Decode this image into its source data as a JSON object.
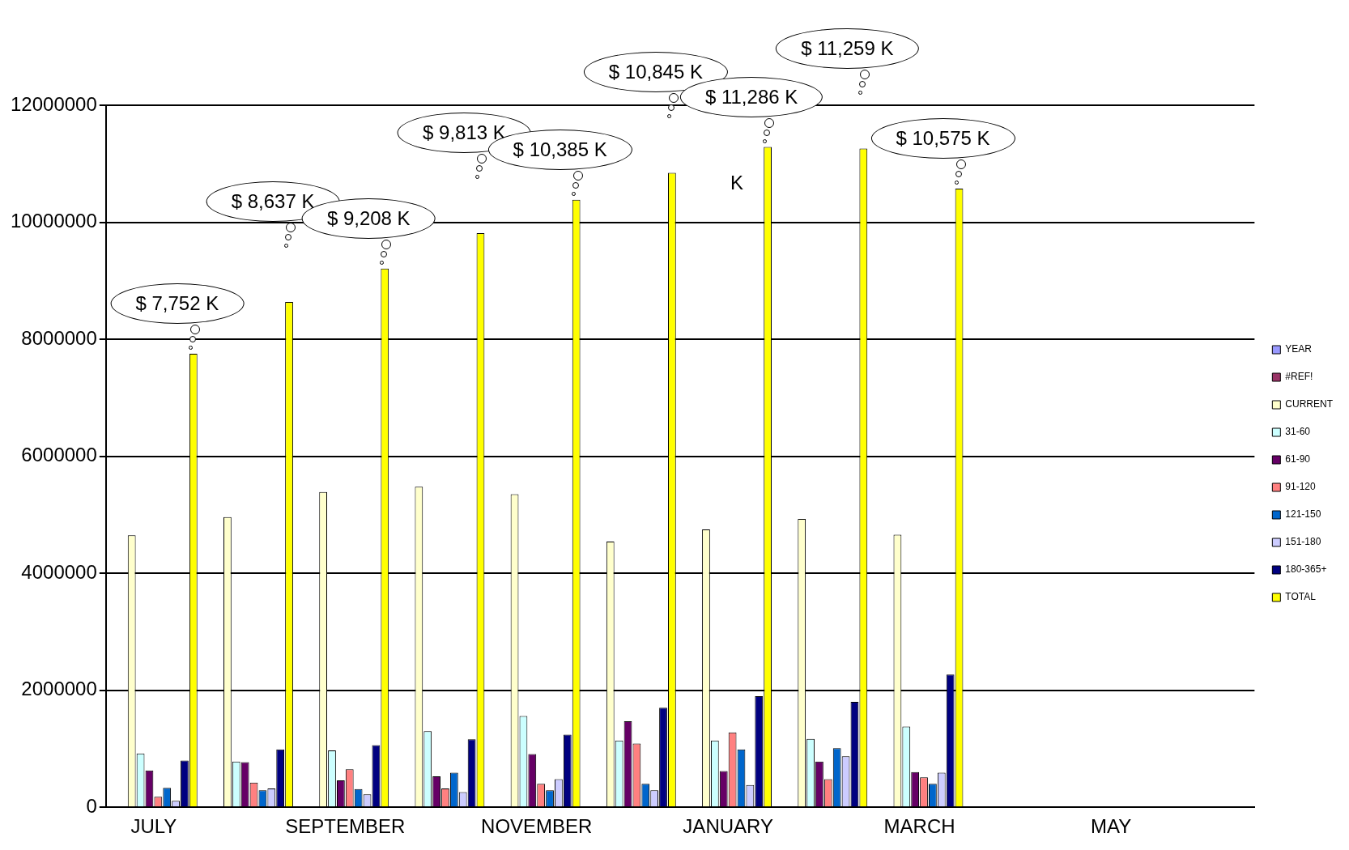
{
  "chart_data": {
    "type": "bar",
    "categories": [
      "JULY",
      null,
      "SEPTEMBER",
      null,
      "NOVEMBER",
      null,
      "JANUARY",
      null,
      "MARCH",
      null,
      "MAY",
      null
    ],
    "series": [
      {
        "name": "YEAR",
        "color": "#9999ff",
        "values": [
          0,
          0,
          0,
          0,
          0,
          0,
          0,
          0,
          0,
          0,
          0,
          0
        ]
      },
      {
        "name": "#REF!",
        "color": "#993366",
        "values": [
          0,
          0,
          0,
          0,
          0,
          0,
          0,
          0,
          0,
          0,
          0,
          0
        ]
      },
      {
        "name": "CURRENT",
        "color": "#ffffcc",
        "values": [
          4650000,
          4960000,
          5390000,
          5480000,
          5350000,
          4540000,
          4750000,
          4930000,
          4660000,
          0,
          0,
          0
        ]
      },
      {
        "name": "31-60",
        "color": "#ccffff",
        "values": [
          920000,
          780000,
          970000,
          1300000,
          1560000,
          1140000,
          1140000,
          1170000,
          1380000,
          0,
          0,
          0
        ]
      },
      {
        "name": "61-90",
        "color": "#660066",
        "values": [
          630000,
          770000,
          460000,
          530000,
          910000,
          1470000,
          620000,
          780000,
          600000,
          0,
          0,
          0
        ]
      },
      {
        "name": "91-120",
        "color": "#ff8080",
        "values": [
          180000,
          420000,
          650000,
          320000,
          400000,
          1090000,
          1280000,
          480000,
          510000,
          0,
          0,
          0
        ]
      },
      {
        "name": "121-150",
        "color": "#0066cc",
        "values": [
          330000,
          290000,
          310000,
          590000,
          290000,
          400000,
          990000,
          1010000,
          400000,
          0,
          0,
          0
        ]
      },
      {
        "name": "151-180",
        "color": "#ccccff",
        "values": [
          110000,
          320000,
          220000,
          260000,
          480000,
          290000,
          380000,
          870000,
          590000,
          0,
          0,
          0
        ]
      },
      {
        "name": "180-365+",
        "color": "#000080",
        "values": [
          800000,
          990000,
          1060000,
          1160000,
          1240000,
          1700000,
          1900000,
          1800000,
          2270000,
          0,
          0,
          0
        ]
      },
      {
        "name": "TOTAL",
        "color": "#ffff00",
        "values": [
          7752000,
          8637000,
          9208000,
          9813000,
          10385000,
          10845000,
          11286000,
          11259000,
          10575000,
          0,
          0,
          0
        ]
      }
    ],
    "ylim": [
      0,
      12000000
    ],
    "yticks": [
      0,
      2000000,
      4000000,
      6000000,
      8000000,
      10000000,
      12000000
    ],
    "grid": "y",
    "legend": "right",
    "annotations": [
      "$ 7,752 K",
      "$ 8,637 K",
      "$ 9,208 K",
      "$ 9,813 K",
      "$ 10,385 K",
      "$ 10,845 K",
      "$ 11,286 K",
      "$ 11,259 K",
      "$ 10,575 K",
      "K"
    ]
  }
}
